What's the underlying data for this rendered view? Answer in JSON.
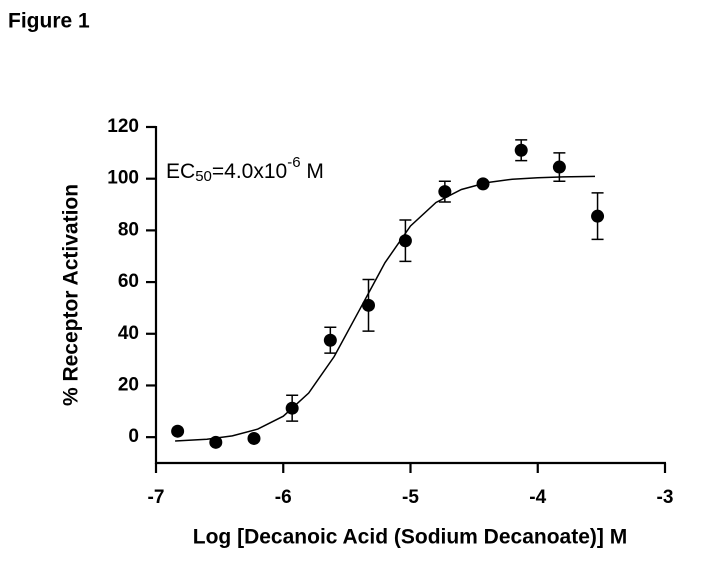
{
  "figure_label": "Figure 1",
  "chart_data": {
    "type": "scatter",
    "x_label": "Log [Decanoic Acid (Sodium Decanoate)] M",
    "y_label": "% Receptor Activation",
    "annotation": [
      "EC",
      "50",
      "=4.0x10",
      "-6",
      " M"
    ],
    "x": [
      -6.83,
      -6.53,
      -6.23,
      -5.93,
      -5.63,
      -5.33,
      -5.04,
      -4.73,
      -4.43,
      -4.13,
      -3.83,
      -3.53
    ],
    "values": [
      2.3,
      -2,
      -0.5,
      11.2,
      37.5,
      51,
      76,
      95,
      98,
      111,
      104.5,
      85.5
    ],
    "errors": [
      null,
      null,
      null,
      5,
      5,
      10,
      8,
      4,
      null,
      4,
      5.5,
      9
    ],
    "color": "#000000",
    "curve": {
      "x": [
        -6.85,
        -6.6,
        -6.4,
        -6.2,
        -6.0,
        -5.8,
        -5.6,
        -5.4,
        -5.2,
        -5.0,
        -4.8,
        -4.6,
        -4.4,
        -4.2,
        -4.0,
        -3.8,
        -3.55
      ],
      "values": [
        -1.5,
        -0.8,
        0.5,
        3.1,
        8.1,
        17.1,
        31.2,
        49.3,
        67.5,
        81.7,
        90.8,
        95.8,
        98.5,
        99.8,
        100.4,
        100.7,
        100.9
      ]
    },
    "xlim": [
      -7,
      -3
    ],
    "ylim": [
      -10,
      120
    ],
    "xticks": [
      -7,
      -6,
      -5,
      -4,
      -3
    ],
    "yticks": [
      0,
      20,
      40,
      60,
      80,
      100,
      120
    ]
  }
}
